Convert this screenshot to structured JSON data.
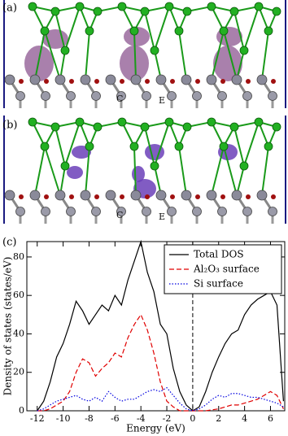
{
  "panels": [
    {
      "label": "(a)",
      "atom_labels": [
        "C",
        "E"
      ]
    },
    {
      "label": "(b)",
      "atom_labels": [
        "C",
        "E"
      ]
    }
  ],
  "chart_data": {
    "type": "line",
    "panel_label": "(c)",
    "x_label": "Energy (eV)",
    "y_label": "Density of states (states/eV)",
    "xlim": [
      -12.8,
      7.1
    ],
    "ylim": [
      0,
      88
    ],
    "xticks": [
      -12,
      -10,
      -8,
      -6,
      -4,
      -2,
      0,
      2,
      4,
      6
    ],
    "yticks": [
      0,
      20,
      40,
      60,
      80
    ],
    "vline": 0,
    "legend": "upper right",
    "x": [
      -12,
      -11.5,
      -11,
      -10.5,
      -10,
      -9.5,
      -9,
      -8.5,
      -8,
      -7.5,
      -7,
      -6.5,
      -6,
      -5.5,
      -5,
      -4.5,
      -4,
      -3.5,
      -3,
      -2.5,
      -2,
      -1.5,
      -1,
      -0.5,
      0,
      0.5,
      1,
      1.5,
      2,
      2.5,
      3,
      3.5,
      4,
      4.5,
      5,
      5.5,
      6,
      6.5,
      7
    ],
    "series": [
      {
        "name": "Total DOS",
        "color": "#000000",
        "dash": "solid",
        "values": [
          0,
          5,
          15,
          28,
          35,
          45,
          57,
          52,
          45,
          50,
          55,
          52,
          60,
          55,
          68,
          78,
          88,
          72,
          62,
          45,
          40,
          22,
          10,
          3,
          0,
          2,
          10,
          20,
          28,
          35,
          40,
          42,
          50,
          55,
          58,
          60,
          62,
          55,
          5
        ]
      },
      {
        "name": "Al₂O₃ surface",
        "color": "#e00000",
        "dash": "dashed",
        "values": [
          0,
          0,
          1,
          3,
          5,
          10,
          20,
          27,
          25,
          18,
          22,
          25,
          30,
          28,
          38,
          45,
          50,
          42,
          30,
          15,
          5,
          2,
          0,
          0,
          0,
          0,
          0,
          0.5,
          1,
          2,
          3,
          3,
          4,
          5,
          6,
          8,
          10,
          8,
          1
        ]
      },
      {
        "name": "Si surface",
        "color": "#0000e0",
        "dash": "dotted",
        "values": [
          0,
          1,
          3,
          5,
          6,
          7,
          8,
          6,
          5,
          7,
          5,
          10,
          7,
          5,
          6,
          6,
          8,
          10,
          11,
          10,
          12,
          8,
          4,
          1,
          0,
          1,
          3,
          6,
          8,
          7,
          9,
          9,
          8,
          7,
          7,
          6,
          5,
          4,
          2
        ]
      }
    ]
  }
}
